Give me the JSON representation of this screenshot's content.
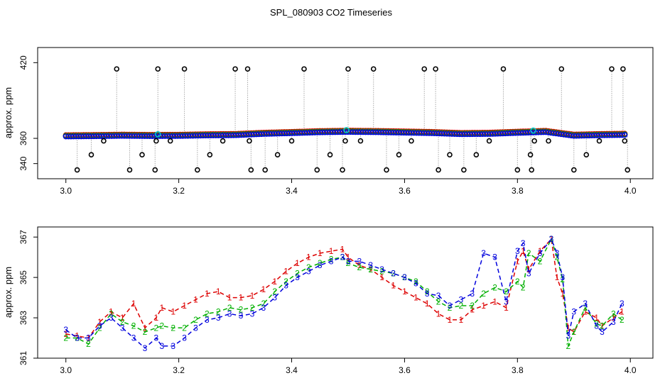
{
  "title": "SPL_080903  CO2 Timeseries",
  "colors": {
    "series1": "#dd0000",
    "series2": "#00b000",
    "series3": "#0000dd",
    "cyan": "#00c8c8",
    "outlier": "#000000",
    "connector": "#aaaaaa",
    "axis": "#000000"
  },
  "chart_data": [
    {
      "type": "scatter",
      "panel": "top",
      "ylabel": "approx. ppm",
      "xlabel": "",
      "xlim": [
        2.95,
        4.04
      ],
      "ylim": [
        328,
        432
      ],
      "xticks": [
        3.0,
        3.2,
        3.4,
        3.6,
        3.8,
        4.0
      ],
      "xtick_labels": [
        "3.0",
        "3.2",
        "3.4",
        "3.6",
        "3.8",
        "4.0"
      ],
      "yticks": [
        340,
        360,
        420
      ],
      "ytick_labels": [
        "340",
        "360",
        "420"
      ],
      "baseline": {
        "x": [
          3.0,
          3.05,
          3.1,
          3.15,
          3.2,
          3.25,
          3.3,
          3.35,
          3.4,
          3.45,
          3.5,
          3.55,
          3.6,
          3.65,
          3.7,
          3.75,
          3.8,
          3.85,
          3.9,
          3.95,
          3.99
        ],
        "y": [
          362,
          362.2,
          362.5,
          362.3,
          362.4,
          362.8,
          363.0,
          364.0,
          364.6,
          365.3,
          365.6,
          365.4,
          365.0,
          364.6,
          363.8,
          364.0,
          364.8,
          365.5,
          362.5,
          363.0,
          363.2
        ]
      },
      "outliers": {
        "x": [
          3.02,
          3.045,
          3.067,
          3.09,
          3.113,
          3.135,
          3.158,
          3.16,
          3.163,
          3.185,
          3.21,
          3.233,
          3.255,
          3.278,
          3.3,
          3.322,
          3.325,
          3.328,
          3.353,
          3.375,
          3.4,
          3.422,
          3.445,
          3.468,
          3.49,
          3.495,
          3.5,
          3.522,
          3.545,
          3.568,
          3.59,
          3.612,
          3.635,
          3.655,
          3.66,
          3.68,
          3.705,
          3.727,
          3.75,
          3.775,
          3.8,
          3.823,
          3.825,
          3.83,
          3.855,
          3.878,
          3.9,
          3.922,
          3.945,
          3.967,
          3.987,
          3.99,
          3.995
        ],
        "y": [
          335,
          347,
          358,
          415,
          335,
          347,
          335,
          358,
          415,
          358,
          415,
          335,
          347,
          358,
          415,
          415,
          358,
          335,
          335,
          347,
          358,
          415,
          335,
          347,
          335,
          358,
          415,
          358,
          415,
          335,
          347,
          358,
          415,
          415,
          335,
          347,
          335,
          347,
          358,
          415,
          335,
          347,
          335,
          358,
          358,
          415,
          335,
          347,
          358,
          415,
          415,
          358,
          335
        ]
      }
    },
    {
      "type": "line",
      "panel": "bottom",
      "ylabel": "approx. ppm",
      "xlabel": "",
      "xlim": [
        2.95,
        4.04
      ],
      "ylim": [
        361,
        367.5
      ],
      "xticks": [
        3.0,
        3.2,
        3.4,
        3.6,
        3.8,
        4.0
      ],
      "xtick_labels": [
        "3.0",
        "3.2",
        "3.4",
        "3.6",
        "3.8",
        "4.0"
      ],
      "yticks": [
        361,
        363,
        365,
        367
      ],
      "ytick_labels": [
        "361",
        "363",
        "365",
        "367"
      ],
      "x": [
        3.0,
        3.02,
        3.04,
        3.06,
        3.08,
        3.1,
        3.12,
        3.14,
        3.16,
        3.17,
        3.19,
        3.21,
        3.23,
        3.25,
        3.27,
        3.29,
        3.31,
        3.33,
        3.35,
        3.37,
        3.39,
        3.41,
        3.43,
        3.45,
        3.47,
        3.49,
        3.5,
        3.52,
        3.54,
        3.56,
        3.58,
        3.6,
        3.62,
        3.64,
        3.66,
        3.68,
        3.7,
        3.72,
        3.74,
        3.76,
        3.78,
        3.8,
        3.81,
        3.82,
        3.84,
        3.86,
        3.87,
        3.88,
        3.89,
        3.9,
        3.92,
        3.94,
        3.95,
        3.97,
        3.985
      ],
      "series": [
        {
          "name": "1",
          "values": [
            362.2,
            362.1,
            362.0,
            362.8,
            363.3,
            363.0,
            363.7,
            362.5,
            363.0,
            363.5,
            363.3,
            363.6,
            363.9,
            364.2,
            364.3,
            364.0,
            364.0,
            364.1,
            364.4,
            364.8,
            365.3,
            365.7,
            366.0,
            366.2,
            366.3,
            366.4,
            366.0,
            365.6,
            365.4,
            365.0,
            364.6,
            364.3,
            364.0,
            363.7,
            363.2,
            362.9,
            362.9,
            363.4,
            363.6,
            363.8,
            363.5,
            365.8,
            366.3,
            365.4,
            366.3,
            366.9,
            365.0,
            364.2,
            362.5,
            362.3,
            363.3,
            363.0,
            362.6,
            363.0,
            363.3
          ]
        },
        {
          "name": "2",
          "values": [
            362.0,
            362.0,
            361.7,
            362.5,
            363.2,
            362.8,
            362.6,
            362.3,
            362.5,
            362.6,
            362.5,
            362.5,
            362.9,
            363.2,
            363.3,
            363.5,
            363.4,
            363.5,
            363.7,
            364.3,
            364.8,
            365.2,
            365.5,
            365.7,
            365.9,
            366.0,
            365.7,
            365.5,
            365.4,
            365.3,
            365.2,
            365.0,
            364.8,
            364.3,
            363.8,
            363.5,
            363.6,
            363.6,
            364.2,
            364.5,
            364.3,
            364.8,
            364.5,
            366.2,
            365.8,
            366.9,
            366.0,
            364.9,
            361.6,
            362.3,
            363.5,
            362.7,
            362.6,
            363.2,
            362.9
          ]
        },
        {
          "name": "3",
          "values": [
            362.4,
            362.0,
            362.0,
            362.6,
            363.0,
            362.5,
            362.0,
            361.5,
            362.0,
            361.6,
            361.6,
            362.0,
            362.5,
            362.9,
            363.0,
            363.2,
            363.1,
            363.2,
            363.5,
            364.0,
            364.6,
            365.0,
            365.3,
            365.6,
            365.8,
            366.0,
            365.8,
            365.8,
            365.6,
            365.4,
            365.2,
            365.0,
            364.7,
            364.2,
            364.1,
            363.6,
            363.9,
            364.2,
            366.2,
            366.0,
            363.8,
            366.3,
            366.7,
            365.2,
            366.2,
            366.9,
            366.2,
            365.0,
            362.1,
            363.3,
            363.7,
            362.6,
            362.3,
            362.8,
            363.7
          ]
        }
      ]
    }
  ]
}
